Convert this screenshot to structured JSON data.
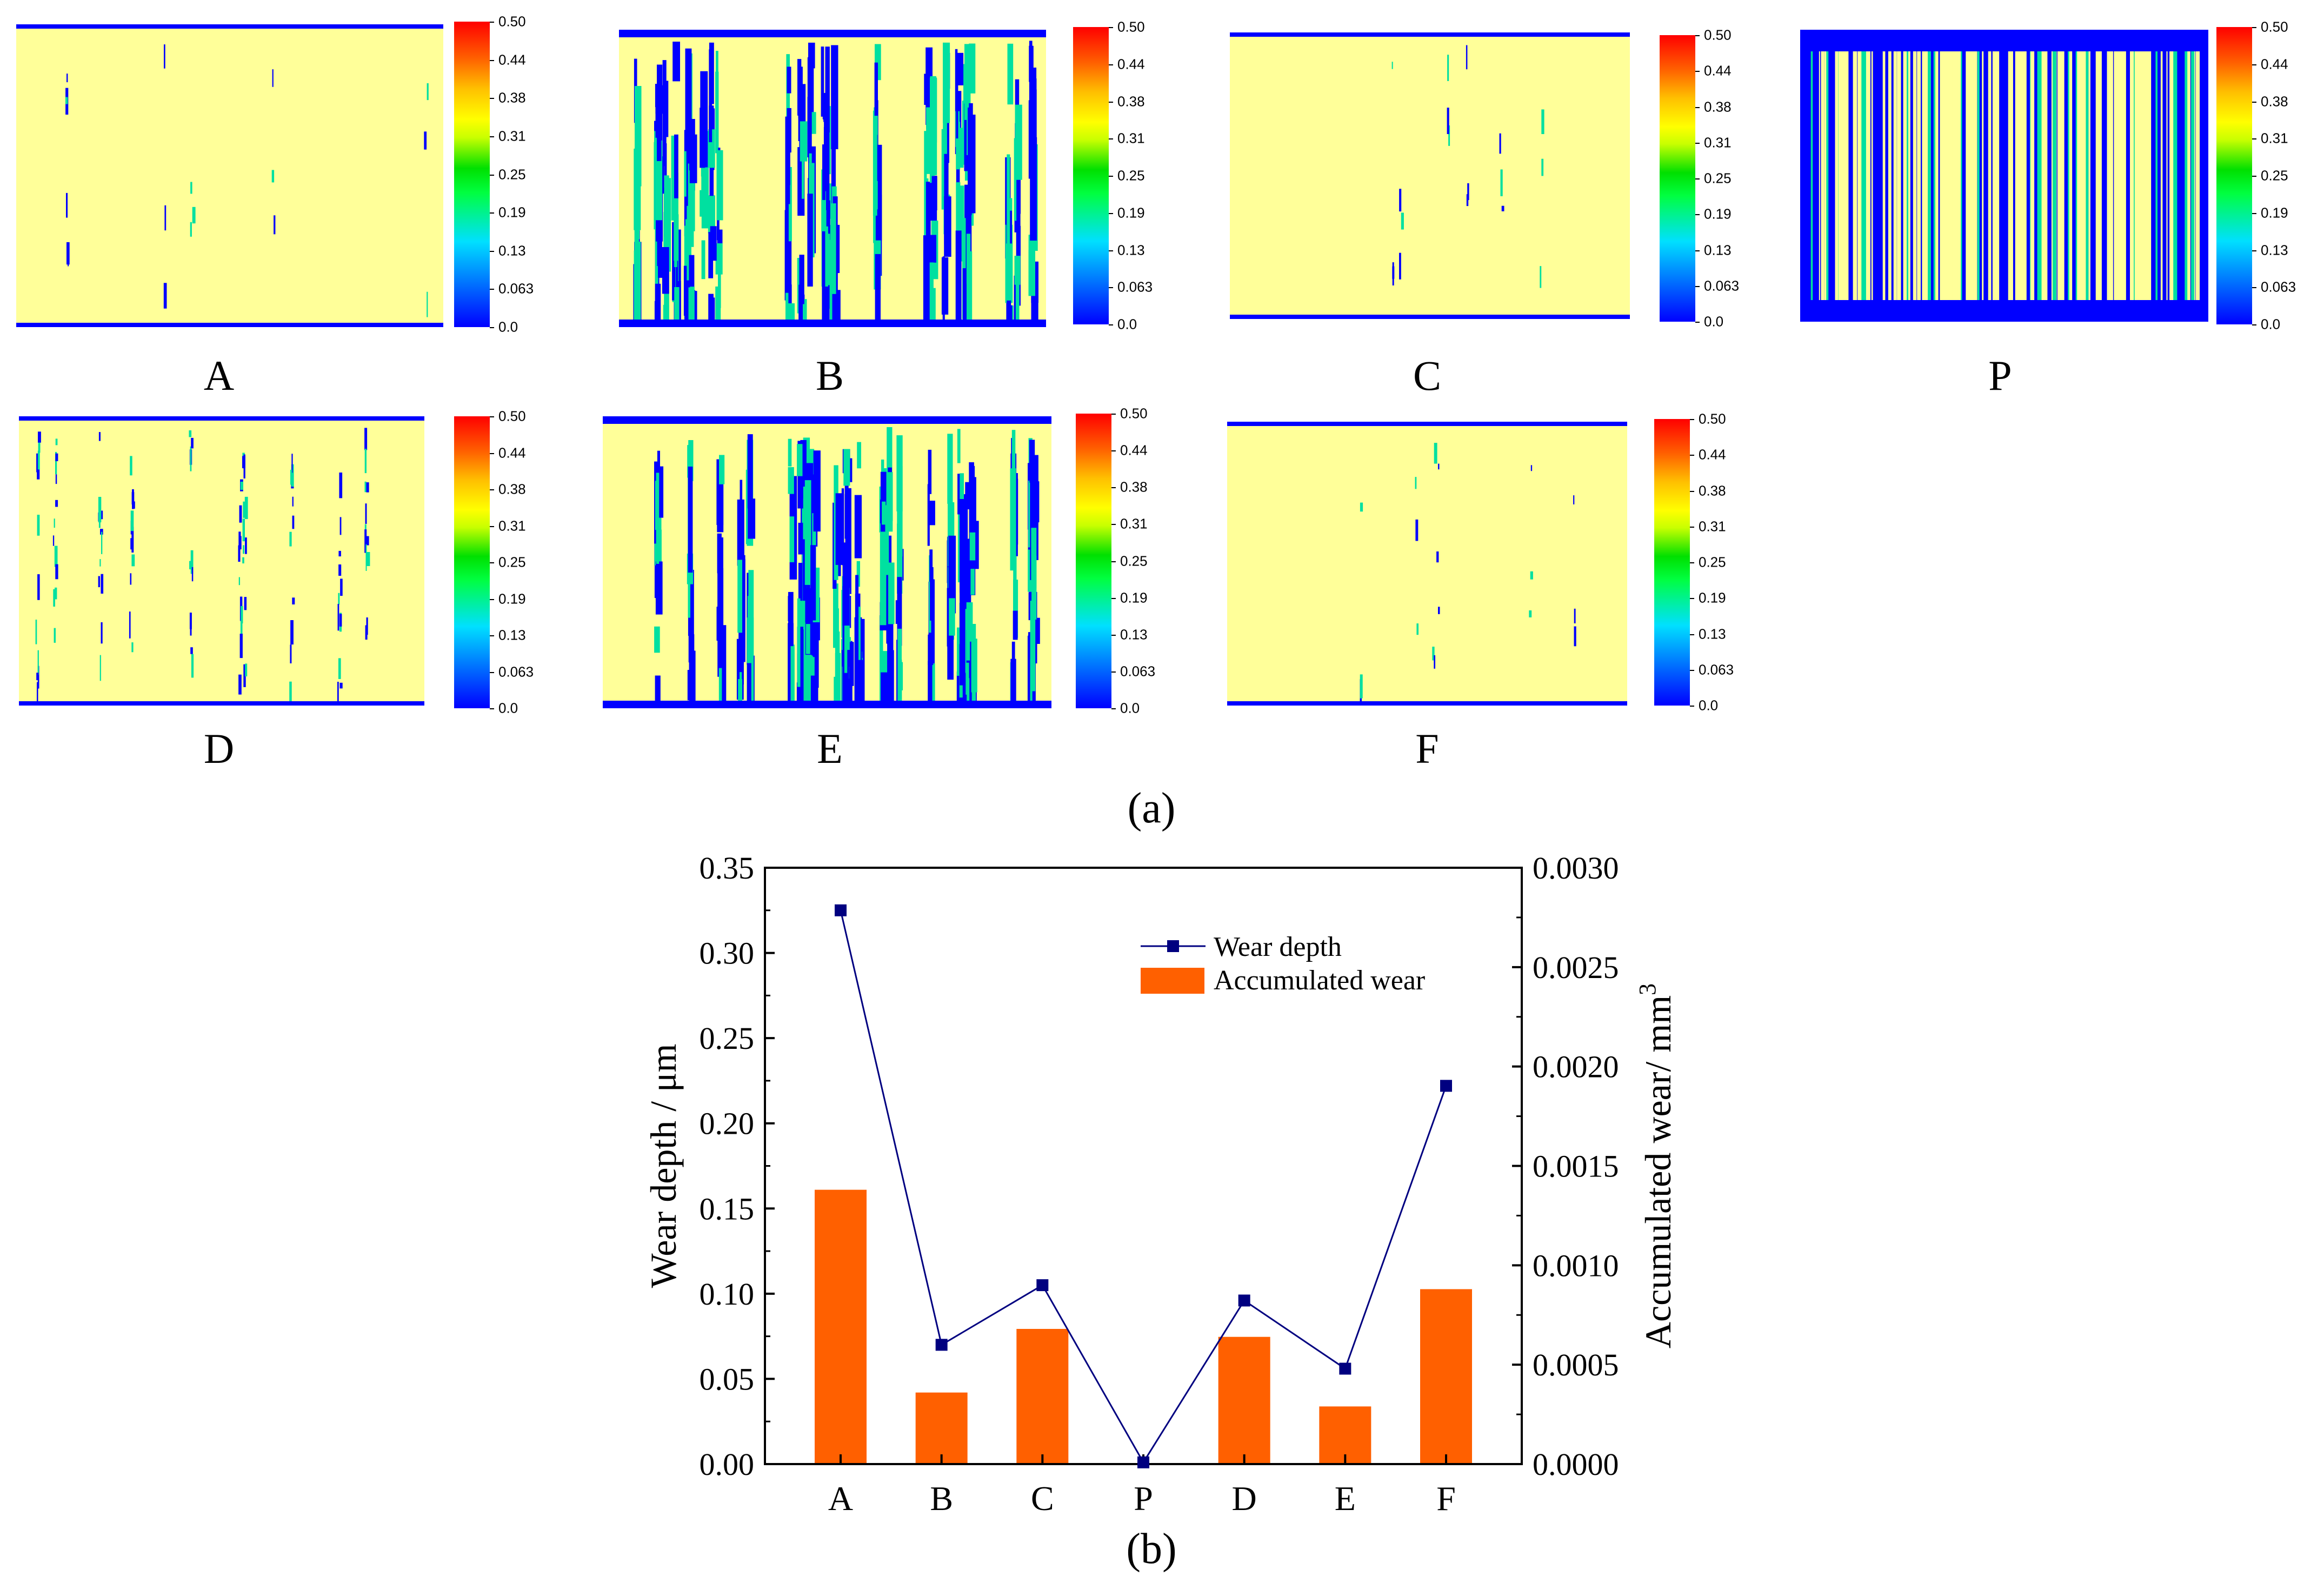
{
  "panel_a": {
    "caption": "(a)",
    "maps": [
      {
        "label": "A",
        "stripe_density": "low"
      },
      {
        "label": "B",
        "stripe_density": "high"
      },
      {
        "label": "C",
        "stripe_density": "low"
      },
      {
        "label": "P",
        "stripe_density": "very-high"
      },
      {
        "label": "D",
        "stripe_density": "medium"
      },
      {
        "label": "E",
        "stripe_density": "high"
      },
      {
        "label": "F",
        "stripe_density": "low"
      }
    ],
    "colorbar_ticks": [
      "0.50",
      "0.44",
      "0.38",
      "0.31",
      "0.25",
      "0.19",
      "0.13",
      "0.063",
      "0.0"
    ],
    "colors": {
      "background": "#ffff99",
      "worn": "#0000ff",
      "mid": "#00e0a0"
    }
  },
  "panel_b": {
    "caption": "(b)"
  },
  "chart_data": {
    "type": "bar+line",
    "categories": [
      "A",
      "B",
      "C",
      "P",
      "D",
      "E",
      "F"
    ],
    "series": [
      {
        "name": "Wear depth",
        "type": "line",
        "axis": "left",
        "color": "#000080",
        "values": [
          0.325,
          0.07,
          0.105,
          0.001,
          0.096,
          0.056,
          0.222
        ]
      },
      {
        "name": "Accumulated wear",
        "type": "bar",
        "axis": "right",
        "color": "#ff6000",
        "values": [
          0.00138,
          0.00036,
          0.00068,
          0.0,
          0.00064,
          0.00029,
          0.00088
        ]
      }
    ],
    "ylabel_left": "Wear depth / μm",
    "ylabel_right": "Accumulated wear/ mm",
    "ylabel_right_sup": "3",
    "ylim_left": [
      0,
      0.35
    ],
    "ylim_right": [
      0,
      0.003
    ],
    "yticks_left": [
      "0.00",
      "0.05",
      "0.10",
      "0.15",
      "0.20",
      "0.25",
      "0.30",
      "0.35"
    ],
    "yticks_right": [
      "0.0000",
      "0.0005",
      "0.0010",
      "0.0015",
      "0.0020",
      "0.0025",
      "0.0030"
    ],
    "legend_position": "top-right"
  }
}
